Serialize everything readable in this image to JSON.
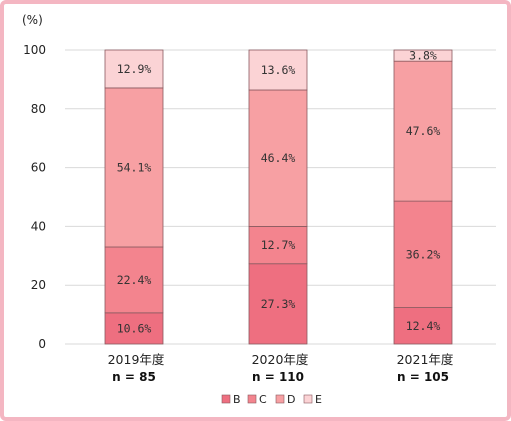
{
  "chart_data": {
    "type": "bar",
    "stacked": true,
    "unit_label": "(%)",
    "ylim": [
      0,
      100
    ],
    "yticks": [
      0,
      20,
      40,
      60,
      80,
      100
    ],
    "grid": "horizontal",
    "legend_position": "bottom",
    "categories": [
      "2019年度",
      "2020年度",
      "2021年度"
    ],
    "n_labels": [
      "n = 85",
      "n = 110",
      "n = 105"
    ],
    "series": [
      {
        "name": "B",
        "color": "#ee6f80",
        "values": [
          10.6,
          27.3,
          12.4
        ],
        "labels": [
          "10.6%",
          "27.3%",
          "12.4%"
        ]
      },
      {
        "name": "C",
        "color": "#f3848e",
        "values": [
          22.4,
          12.7,
          36.2
        ],
        "labels": [
          "22.4%",
          "12.7%",
          "36.2%"
        ]
      },
      {
        "name": "D",
        "color": "#f7a0a3",
        "values": [
          54.1,
          46.4,
          47.6
        ],
        "labels": [
          "54.1%",
          "46.4%",
          "47.6%"
        ]
      },
      {
        "name": "E",
        "color": "#fbd3d5",
        "values": [
          12.9,
          13.6,
          3.8
        ],
        "labels": [
          "12.9%",
          "13.6%",
          "3.8%"
        ]
      }
    ]
  }
}
